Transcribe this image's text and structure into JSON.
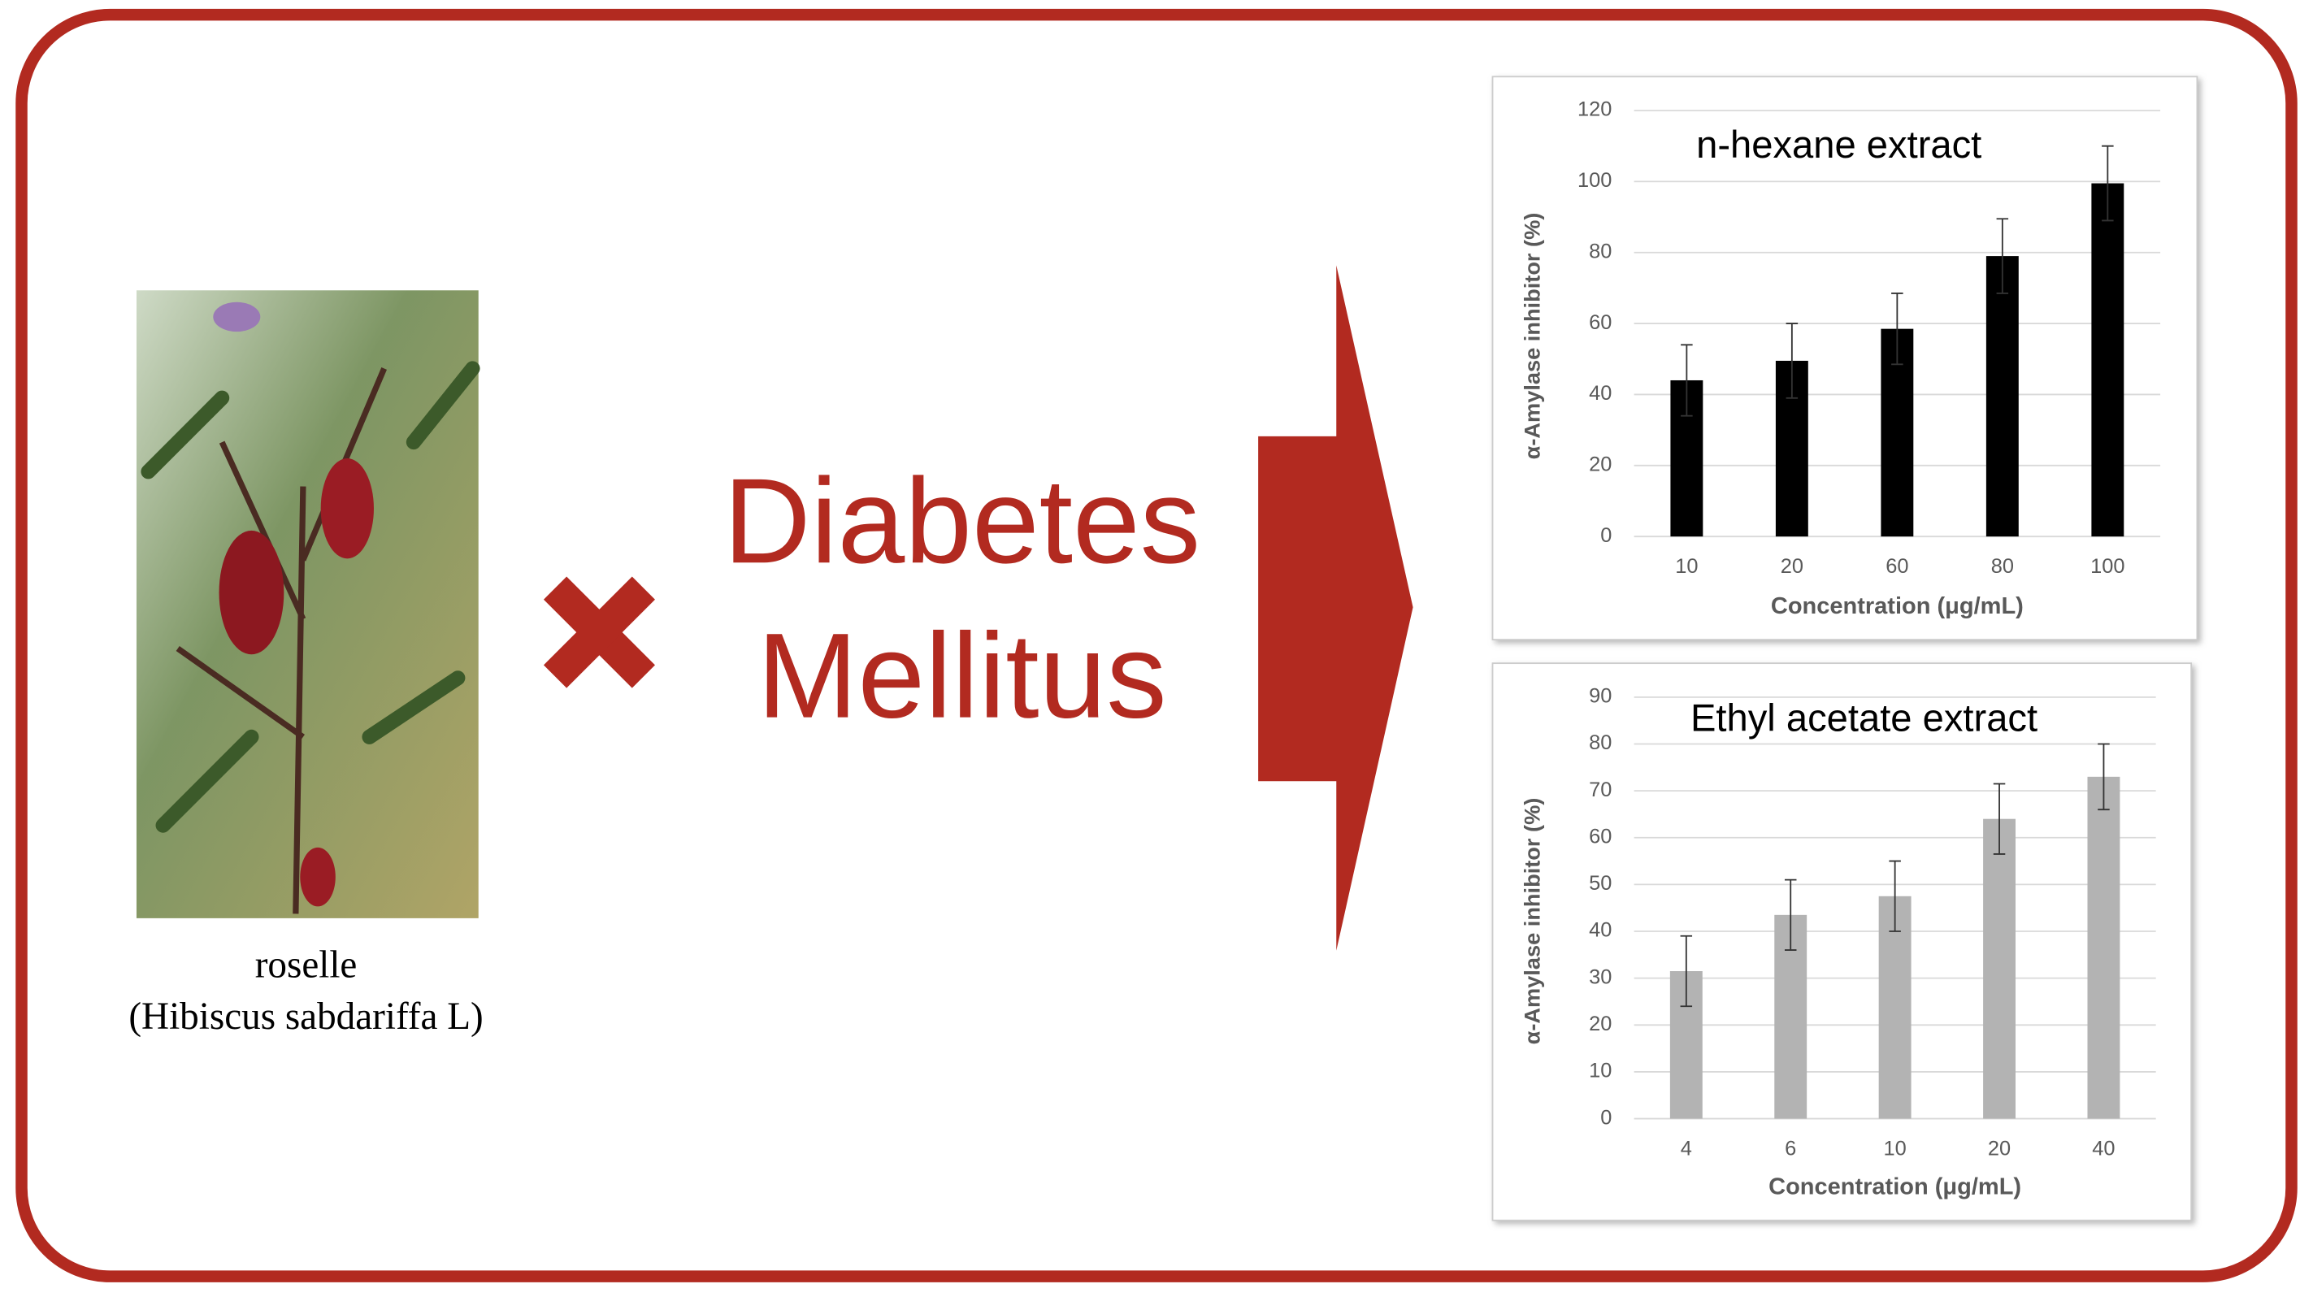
{
  "chart_data": [
    {
      "type": "bar",
      "title": "n-hexane extract",
      "x_label": "Concentration (μg/mL)",
      "y_label": "α-Amylase inhibitor (%)",
      "categories": [
        "10",
        "20",
        "60",
        "80",
        "100"
      ],
      "values": [
        44,
        49.5,
        58.5,
        79,
        99.5
      ],
      "errors": [
        10,
        10.5,
        10,
        10.5,
        10.5
      ],
      "color": "#000000",
      "ylim": [
        0,
        120
      ],
      "yticks": [
        0,
        20,
        40,
        60,
        80,
        100,
        120
      ],
      "grid": true
    },
    {
      "type": "bar",
      "title": "Ethyl acetate extract",
      "x_label": "Concentration (μg/mL)",
      "y_label": "α-Amylase inhibitor (%)",
      "categories": [
        "4",
        "6",
        "10",
        "20",
        "40"
      ],
      "values": [
        31.5,
        43.5,
        47.5,
        64,
        73
      ],
      "errors": [
        7.5,
        7.5,
        7.5,
        7.5,
        7
      ],
      "color": "#b3b3b3",
      "ylim": [
        0,
        90
      ],
      "yticks": [
        0,
        10,
        20,
        30,
        40,
        50,
        60,
        70,
        80,
        90
      ],
      "grid": true
    }
  ],
  "disease": {
    "line1": "Diabetes",
    "line2": "Mellitus"
  },
  "plant": {
    "common_name": "roselle",
    "scientific_name": "(Hibiscus sabdariffa L)"
  }
}
